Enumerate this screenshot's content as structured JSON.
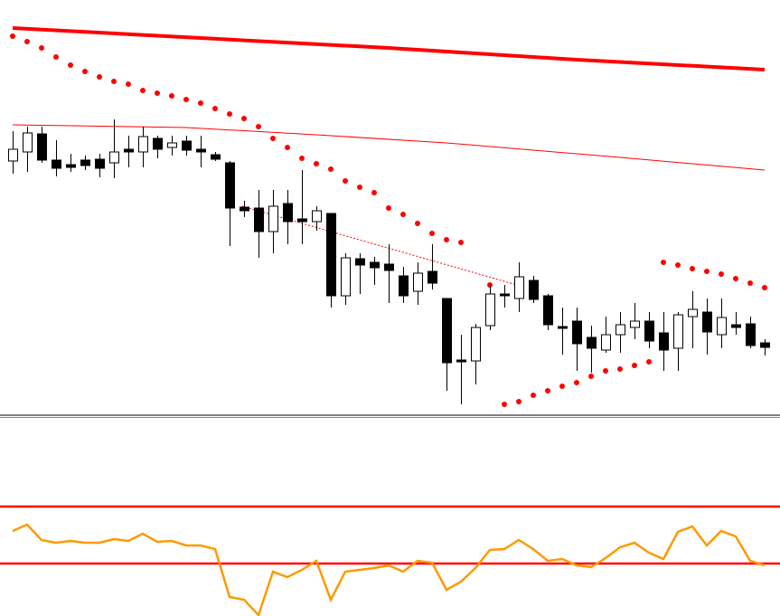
{
  "chart_data": [
    {
      "type": "candlestick",
      "open": [
        282,
        292,
        312,
        283,
        278,
        283,
        284,
        280,
        295,
        292,
        307,
        297,
        304,
        295,
        289,
        280,
        231,
        230,
        204,
        235,
        218,
        215,
        224,
        133,
        174,
        170,
        168,
        155,
        138,
        160,
        130,
        62,
        61,
        100,
        135,
        130,
        150,
        133,
        99,
        105,
        87,
        73,
        90,
        98,
        105,
        92,
        75,
        110,
        115,
        90,
        101,
        102,
        81
      ],
      "high": [
        315,
        320,
        320,
        305,
        290,
        288,
        290,
        328,
        310,
        320,
        310,
        310,
        310,
        310,
        292,
        282,
        238,
        250,
        250,
        250,
        272,
        232,
        224,
        180,
        180,
        176,
        190,
        165,
        170,
        190,
        130,
        90,
        102,
        145,
        145,
        170,
        155,
        135,
        120,
        120,
        100,
        110,
        115,
        125,
        115,
        115,
        115,
        138,
        130,
        130,
        115,
        110,
        85
      ],
      "low": [
        268,
        270,
        280,
        265,
        270,
        272,
        264,
        263,
        275,
        275,
        285,
        288,
        288,
        275,
        282,
        188,
        220,
        175,
        180,
        190,
        190,
        205,
        120,
        123,
        135,
        145,
        125,
        125,
        123,
        140,
        28,
        13,
        35,
        95,
        120,
        115,
        125,
        95,
        68,
        50,
        48,
        70,
        70,
        85,
        75,
        50,
        50,
        75,
        68,
        75,
        90,
        75,
        67
      ],
      "close": [
        295,
        313,
        283,
        274,
        275,
        277,
        274,
        292,
        292,
        309,
        295,
        302,
        294,
        292,
        284,
        230,
        227,
        204,
        232,
        215,
        215,
        227,
        133,
        175,
        167,
        164,
        161,
        133,
        158,
        147,
        59,
        60,
        98,
        135,
        133,
        154,
        129,
        101,
        97,
        80,
        75,
        90,
        101,
        105,
        83,
        73,
        112,
        118,
        93,
        109,
        98,
        78,
        76
      ],
      "up_color": "#ffffff",
      "down_color": "#000000",
      "ylim": [
        0,
        460
      ],
      "overlays": [
        {
          "type": "line",
          "x": [
            0,
            13,
            26,
            39,
            52
          ],
          "values": [
            429,
            418,
            407,
            394,
            383
          ],
          "color": "#ff0000",
          "width": 4
        },
        {
          "type": "line",
          "x": [
            0,
            12,
            21,
            30,
            42,
            52
          ],
          "values": [
            322,
            319,
            311,
            302,
            286,
            272
          ],
          "color": "#ff0000",
          "width": 1
        },
        {
          "type": "dots",
          "values": [
            420,
            414,
            407,
            397,
            388,
            381,
            375,
            370,
            367,
            360,
            357,
            354,
            350,
            346,
            340,
            334,
            329,
            320,
            307,
            297,
            285,
            279,
            273,
            260,
            253,
            247,
            230,
            223,
            213,
            202,
            195,
            192,
            null,
            145,
            13,
            16,
            23,
            28,
            33,
            37,
            44,
            50,
            52,
            56,
            60,
            170,
            167,
            163,
            160,
            157,
            152,
            147,
            142
          ],
          "color": "#ff0000"
        }
      ]
    },
    {
      "type": "line",
      "values": [
        94,
        101,
        84,
        81,
        83,
        81,
        81,
        85,
        83,
        91,
        82,
        83,
        78,
        78,
        74,
        21,
        18,
        1,
        49,
        43,
        51,
        61,
        18,
        49,
        51,
        53,
        56,
        49,
        61,
        59,
        29,
        38,
        53,
        73,
        74,
        84,
        74,
        61,
        63,
        56,
        54,
        64,
        76,
        81,
        70,
        63,
        93,
        99,
        78,
        94,
        88,
        61,
        56
      ],
      "color": "#ff9900",
      "ylim": [
        0,
        219
      ],
      "levels": [
        121,
        58
      ],
      "level_color": "#ff0000"
    }
  ]
}
